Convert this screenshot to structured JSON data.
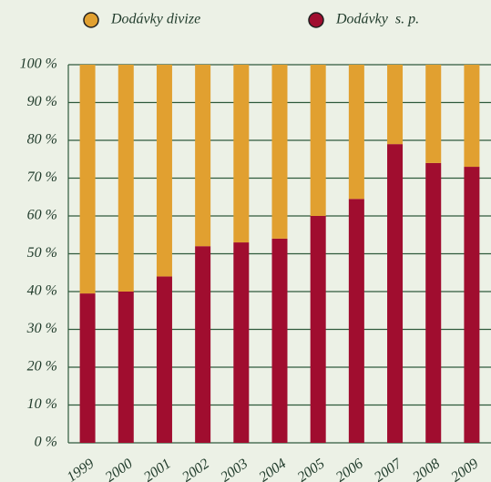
{
  "chart_data": {
    "type": "stacked_bar",
    "categories": [
      "1999",
      "2000",
      "2001",
      "2002",
      "2003",
      "2004",
      "2005",
      "2006",
      "2007",
      "2008",
      "2009"
    ],
    "series": [
      {
        "name": "Dodávky divize",
        "color": "#e1a030",
        "values": [
          60.5,
          60,
          56,
          48,
          47,
          46,
          40,
          35.5,
          21,
          26,
          27
        ]
      },
      {
        "name": "Dodávky  s. p.",
        "color": "#a00d2f",
        "values": [
          39.5,
          40,
          44,
          52,
          53,
          54,
          60,
          64.5,
          79,
          74,
          73
        ]
      }
    ],
    "ylim": [
      0,
      100
    ],
    "yticks": [
      {
        "value": 0,
        "label": "0 %"
      },
      {
        "value": 10,
        "label": "10 %"
      },
      {
        "value": 20,
        "label": "20 %"
      },
      {
        "value": 30,
        "label": "30 %"
      },
      {
        "value": 40,
        "label": "40 %"
      },
      {
        "value": 50,
        "label": "50 %"
      },
      {
        "value": 60,
        "label": "60 %"
      },
      {
        "value": 70,
        "label": "70 %"
      },
      {
        "value": 80,
        "label": "80 %"
      },
      {
        "value": 90,
        "label": "90 %"
      },
      {
        "value": 100,
        "label": "100 %"
      }
    ],
    "grid": true
  }
}
